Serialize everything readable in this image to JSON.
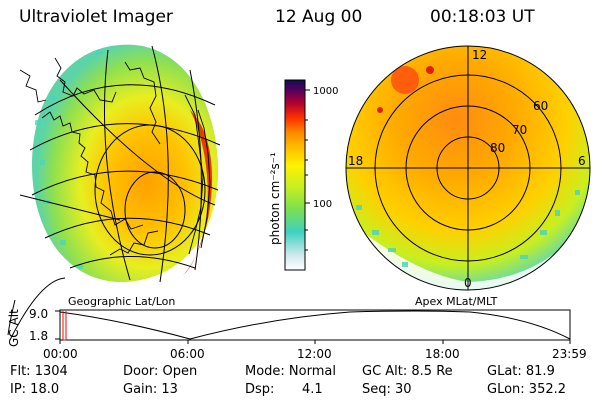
{
  "header": {
    "instrument": "Ultraviolet Imager",
    "date": "12 Aug 00",
    "time": "00:18:03 UT"
  },
  "colorbar": {
    "unit_label": "photon cm⁻²s⁻¹",
    "ticks": [
      "1000",
      "100"
    ],
    "colors": [
      "#ffffff",
      "#cfe8ec",
      "#3fd0c0",
      "#7be050",
      "#c8ef20",
      "#fff200",
      "#ffc000",
      "#ff8c00",
      "#ff3000",
      "#b00030",
      "#500060",
      "#101050"
    ]
  },
  "left_panel": {
    "label": "Geographic Lat/Lon"
  },
  "right_panel": {
    "label": "Apex MLat/MLT",
    "mlt_labels": {
      "top": "12",
      "bottom": "0",
      "left": "18",
      "right": "6"
    },
    "lat_labels": [
      "60",
      "70",
      "80"
    ]
  },
  "altitude_plot": {
    "ylabel": "GC Alt",
    "yticks": [
      "9.0",
      "1.8"
    ],
    "xticks": [
      "00:00",
      "06:00",
      "12:00",
      "18:00",
      "23:59"
    ],
    "marker_color": "#ff0000"
  },
  "status": {
    "flt": "Flt: 1304",
    "ip": "IP: 18.0",
    "door": "Door: Open",
    "gain": "Gain: 13",
    "mode": "Mode: Normal",
    "dsp": "Dsp:",
    "dsp_value": "4.1",
    "gc_alt": "GC Alt: 8.5 Re",
    "seq": "Seq: 30",
    "glat": "GLat:  81.9",
    "glon": "GLon: 352.2"
  }
}
